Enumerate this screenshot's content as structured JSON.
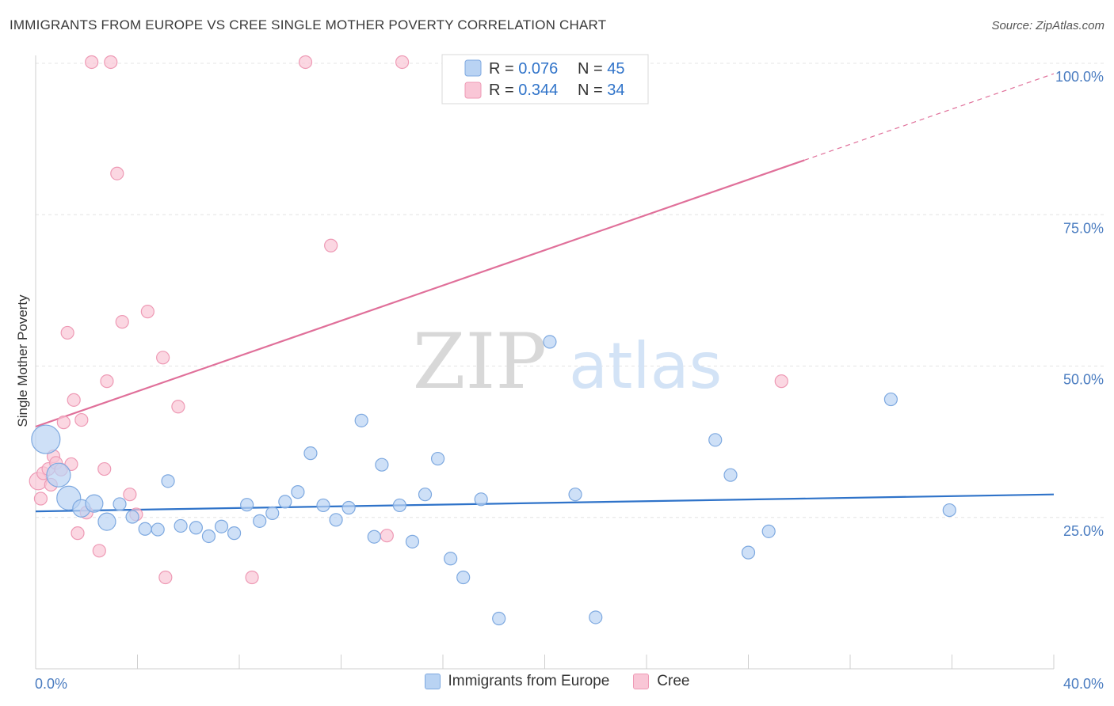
{
  "header": {
    "title": "IMMIGRANTS FROM EUROPE VS CREE SINGLE MOTHER POVERTY CORRELATION CHART",
    "source": "Source: ZipAtlas.com"
  },
  "watermark": {
    "zip": "ZIP",
    "atlas": "atlas"
  },
  "colors": {
    "blue_fill": "#b9d3f3",
    "blue_stroke": "#7ea9e0",
    "blue_line": "#2f73c9",
    "pink_fill": "#f9c6d6",
    "pink_stroke": "#ee9ab5",
    "pink_line": "#e0709a",
    "tick_text": "#4a7cc0"
  },
  "legend": {
    "rows": [
      {
        "r_label": "R = ",
        "r_value": "0.076",
        "n_label": "N = ",
        "n_value": "45"
      },
      {
        "r_label": "R = ",
        "r_value": "0.344",
        "n_label": "N = ",
        "n_value": "34"
      }
    ]
  },
  "bottom_legend": {
    "items": [
      {
        "label": "Immigrants from Europe"
      },
      {
        "label": "Cree"
      }
    ]
  },
  "chart_data": {
    "type": "scatter",
    "title": "IMMIGRANTS FROM EUROPE VS CREE SINGLE MOTHER POVERTY CORRELATION CHART",
    "xlabel": "",
    "ylabel": "Single Mother Poverty",
    "xlim": [
      0,
      40
    ],
    "ylim": [
      0,
      100
    ],
    "x_tick_labels": [
      "0.0%",
      "40.0%"
    ],
    "y_ticks": [
      25,
      50,
      75,
      100
    ],
    "y_tick_labels": [
      "25.0%",
      "50.0%",
      "75.0%",
      "100.0%"
    ],
    "grid": true,
    "legend_position": "top-center",
    "series": [
      {
        "name": "Immigrants from Europe",
        "color": "#b9d3f3",
        "r": 0.076,
        "n": 45,
        "trend": {
          "x": [
            0,
            40
          ],
          "y": [
            26.0,
            28.8
          ],
          "extrapolated_to": 40
        },
        "points": [
          {
            "x": 0.4,
            "y": 37.9,
            "size": "xl"
          },
          {
            "x": 0.9,
            "y": 32.0,
            "size": "l"
          },
          {
            "x": 1.3,
            "y": 28.2,
            "size": "l"
          },
          {
            "x": 1.8,
            "y": 26.5,
            "size": "m"
          },
          {
            "x": 2.3,
            "y": 27.3,
            "size": "m"
          },
          {
            "x": 2.8,
            "y": 24.3,
            "size": "m"
          },
          {
            "x": 3.3,
            "y": 27.2,
            "size": "s"
          },
          {
            "x": 3.8,
            "y": 25.1,
            "size": "s"
          },
          {
            "x": 4.3,
            "y": 23.1,
            "size": "s"
          },
          {
            "x": 4.8,
            "y": 23.0,
            "size": "s"
          },
          {
            "x": 5.2,
            "y": 31.0,
            "size": "s"
          },
          {
            "x": 5.7,
            "y": 23.6,
            "size": "s"
          },
          {
            "x": 6.3,
            "y": 23.3,
            "size": "s"
          },
          {
            "x": 6.8,
            "y": 21.9,
            "size": "s"
          },
          {
            "x": 7.3,
            "y": 23.5,
            "size": "s"
          },
          {
            "x": 7.8,
            "y": 22.4,
            "size": "s"
          },
          {
            "x": 8.3,
            "y": 27.1,
            "size": "s"
          },
          {
            "x": 8.8,
            "y": 24.4,
            "size": "s"
          },
          {
            "x": 9.3,
            "y": 25.7,
            "size": "s"
          },
          {
            "x": 9.8,
            "y": 27.6,
            "size": "s"
          },
          {
            "x": 10.3,
            "y": 29.2,
            "size": "s"
          },
          {
            "x": 10.8,
            "y": 35.6,
            "size": "s"
          },
          {
            "x": 11.3,
            "y": 27.0,
            "size": "s"
          },
          {
            "x": 11.8,
            "y": 24.6,
            "size": "s"
          },
          {
            "x": 12.3,
            "y": 26.6,
            "size": "s"
          },
          {
            "x": 12.8,
            "y": 41.0,
            "size": "s"
          },
          {
            "x": 13.3,
            "y": 21.8,
            "size": "s"
          },
          {
            "x": 13.6,
            "y": 33.7,
            "size": "s"
          },
          {
            "x": 14.3,
            "y": 27.0,
            "size": "s"
          },
          {
            "x": 14.8,
            "y": 21.0,
            "size": "s"
          },
          {
            "x": 15.3,
            "y": 28.8,
            "size": "s"
          },
          {
            "x": 15.8,
            "y": 34.7,
            "size": "s"
          },
          {
            "x": 16.3,
            "y": 18.2,
            "size": "s"
          },
          {
            "x": 16.8,
            "y": 15.1,
            "size": "s"
          },
          {
            "x": 17.5,
            "y": 28.0,
            "size": "s"
          },
          {
            "x": 18.2,
            "y": 8.3,
            "size": "s"
          },
          {
            "x": 20.2,
            "y": 54.0,
            "size": "s"
          },
          {
            "x": 21.2,
            "y": 28.8,
            "size": "s"
          },
          {
            "x": 22.0,
            "y": 8.5,
            "size": "s"
          },
          {
            "x": 26.7,
            "y": 37.8,
            "size": "s"
          },
          {
            "x": 27.3,
            "y": 32.0,
            "size": "s"
          },
          {
            "x": 28.0,
            "y": 19.2,
            "size": "s"
          },
          {
            "x": 28.8,
            "y": 22.7,
            "size": "s"
          },
          {
            "x": 33.6,
            "y": 44.5,
            "size": "s"
          },
          {
            "x": 35.9,
            "y": 26.2,
            "size": "s"
          }
        ]
      },
      {
        "name": "Cree",
        "color": "#f9c6d6",
        "r": 0.344,
        "n": 34,
        "trend": {
          "x": [
            0,
            30.2
          ],
          "y": [
            40.0,
            84.0
          ],
          "extrapolated_to": 40
        },
        "points": [
          {
            "x": 0.1,
            "y": 31.0,
            "size": "m"
          },
          {
            "x": 0.2,
            "y": 28.1,
            "size": "s"
          },
          {
            "x": 0.3,
            "y": 32.3,
            "size": "s"
          },
          {
            "x": 0.5,
            "y": 33.0,
            "size": "s"
          },
          {
            "x": 0.6,
            "y": 30.4,
            "size": "s"
          },
          {
            "x": 0.7,
            "y": 35.1,
            "size": "s"
          },
          {
            "x": 0.8,
            "y": 34.0,
            "size": "s"
          },
          {
            "x": 1.0,
            "y": 32.9,
            "size": "s"
          },
          {
            "x": 1.1,
            "y": 40.7,
            "size": "s"
          },
          {
            "x": 1.25,
            "y": 55.5,
            "size": "s"
          },
          {
            "x": 1.4,
            "y": 33.8,
            "size": "s"
          },
          {
            "x": 1.5,
            "y": 44.4,
            "size": "s"
          },
          {
            "x": 1.65,
            "y": 22.4,
            "size": "s"
          },
          {
            "x": 1.8,
            "y": 41.1,
            "size": "s"
          },
          {
            "x": 2.0,
            "y": 25.8,
            "size": "s"
          },
          {
            "x": 2.2,
            "y": 100.2,
            "size": "s"
          },
          {
            "x": 2.5,
            "y": 19.5,
            "size": "s"
          },
          {
            "x": 2.7,
            "y": 33.0,
            "size": "s"
          },
          {
            "x": 2.8,
            "y": 47.5,
            "size": "s"
          },
          {
            "x": 2.95,
            "y": 100.2,
            "size": "s"
          },
          {
            "x": 3.2,
            "y": 81.8,
            "size": "s"
          },
          {
            "x": 3.4,
            "y": 57.3,
            "size": "s"
          },
          {
            "x": 3.7,
            "y": 28.8,
            "size": "s"
          },
          {
            "x": 3.95,
            "y": 25.5,
            "size": "s"
          },
          {
            "x": 4.4,
            "y": 59.0,
            "size": "s"
          },
          {
            "x": 5.0,
            "y": 51.4,
            "size": "s"
          },
          {
            "x": 5.1,
            "y": 15.1,
            "size": "s"
          },
          {
            "x": 5.6,
            "y": 43.3,
            "size": "s"
          },
          {
            "x": 8.5,
            "y": 15.1,
            "size": "s"
          },
          {
            "x": 10.6,
            "y": 100.2,
            "size": "s"
          },
          {
            "x": 11.6,
            "y": 69.9,
            "size": "s"
          },
          {
            "x": 13.8,
            "y": 22.0,
            "size": "s"
          },
          {
            "x": 14.4,
            "y": 100.2,
            "size": "s"
          },
          {
            "x": 29.3,
            "y": 47.5,
            "size": "s"
          }
        ]
      }
    ]
  }
}
